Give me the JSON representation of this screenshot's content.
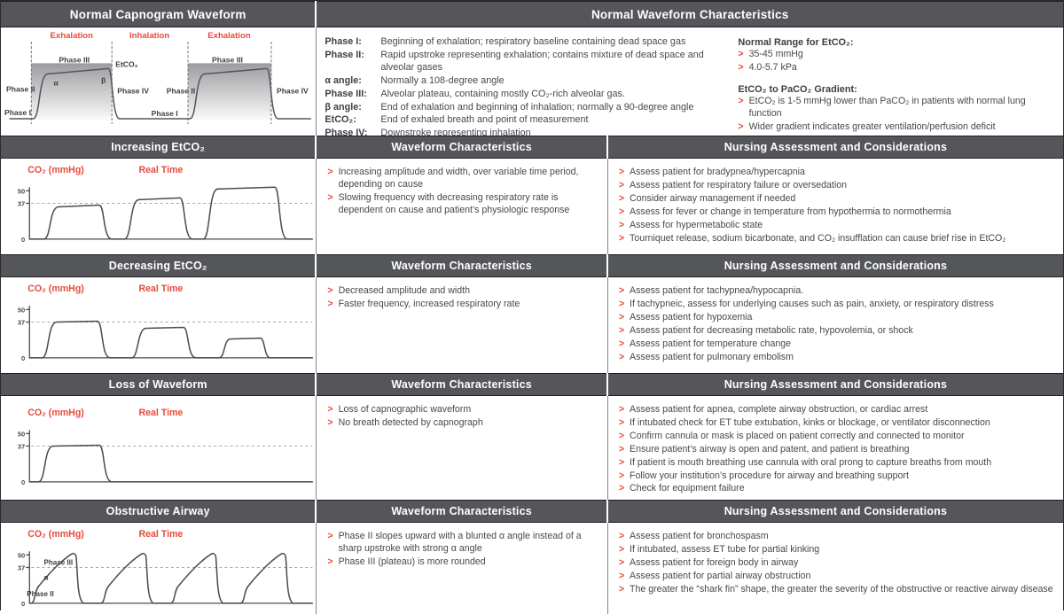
{
  "normal": {
    "waveform_title": "Normal Capnogram Waveform",
    "characteristics_title": "Normal Waveform Characteristics",
    "diagram": {
      "exhalation_left": "Exhalation",
      "inhalation": "Inhalation",
      "exhalation_right": "Exhalation",
      "phase1_left": "Phase I",
      "phase2_left": "Phase II",
      "phase3_left": "Phase III",
      "phase4_left": "Phase IV",
      "alpha": "α",
      "beta": "β",
      "etco2": "EtCO₂",
      "phase1_right": "Phase I",
      "phase2_right": "Phase II",
      "phase3_right": "Phase III",
      "phase4_right": "Phase IV"
    },
    "phases": [
      {
        "term": "Phase I:",
        "definition": "Beginning of exhalation; respiratory baseline containing dead space gas"
      },
      {
        "term": "Phase II:",
        "definition": "Rapid upstroke representing exhalation; contains mixture of dead space and alveolar gases"
      },
      {
        "term": "α angle:",
        "definition": "Normally a 108-degree angle"
      },
      {
        "term": "Phase III:",
        "definition": "Alveolar plateau, containing mostly CO₂-rich alveolar gas."
      },
      {
        "term": "β angle:",
        "definition": "End of exhalation and beginning of inhalation; normally a 90-degree angle"
      },
      {
        "term": "EtCO₂:",
        "definition": "End of exhaled breath and point of measurement"
      },
      {
        "term": "Phase IV:",
        "definition": "Downstroke representing inhalation"
      }
    ],
    "range_groups": [
      {
        "heading": "Normal Range for EtCO₂:",
        "items": [
          "35-45 mmHg",
          "4.0-5.7 kPa"
        ]
      },
      {
        "heading": "EtCO₂ to PaCO₂ Gradient:",
        "items": [
          "EtCO₂ is 1-5 mmHg lower than PaCO₂ in patients with normal lung function",
          "Wider gradient indicates greater ventilation/perfusion deficit"
        ]
      }
    ]
  },
  "graph": {
    "ylabel": "CO₂ (mmHg)",
    "xlabel": "Real Time",
    "tick_top": "50",
    "tick_mid": "37",
    "tick_zero": "0"
  },
  "column_headers": {
    "characteristics": "Waveform Characteristics",
    "nursing": "Nursing Assessment and Considerations"
  },
  "sections": [
    {
      "title": "Increasing EtCO₂",
      "characteristics": [
        "Increasing amplitude and width, over variable time period, depending on cause",
        "Slowing frequency with decreasing respiratory rate is dependent on cause and patient’s physiologic response"
      ],
      "nursing": [
        "Assess patient for bradypnea/hypercapnia",
        "Assess patient for respiratory failure or oversedation",
        "Consider airway management if needed",
        "Assess for fever or change in temperature from hypothermia to normothermia",
        "Assess for hypermetabolic state",
        "Tourniquet release, sodium bicarbonate, and CO₂ insufflation can cause brief rise in EtCO₂"
      ]
    },
    {
      "title": "Decreasing EtCO₂",
      "characteristics": [
        "Decreased amplitude and width",
        "Faster frequency, increased respiratory rate"
      ],
      "nursing": [
        "Assess patient for tachypnea/hypocapnia.",
        "If tachypneic, assess for underlying causes such as pain, anxiety, or respiratory distress",
        "Assess patient for hypoxemia",
        "Assess patient for decreasing metabolic rate, hypovolemia, or shock",
        "Assess patient for temperature change",
        "Assess patient for pulmonary embolism"
      ]
    },
    {
      "title": "Loss of Waveform",
      "characteristics": [
        "Loss of capnographic waveform",
        "No breath detected by capnograph"
      ],
      "nursing": [
        "Assess patient for apnea, complete airway obstruction, or cardiac arrest",
        "If intubated check for ET tube extubation, kinks or blockage, or ventilator disconnection",
        "Confirm cannula or mask is placed on patient correctly and connected to monitor",
        "Ensure patient’s airway is open and patent, and patient is breathing",
        "If patient is mouth breathing use cannula with oral prong to capture breaths from mouth",
        "Follow your institution’s procedure for airway and breathing support",
        "Check for equipment failure"
      ]
    },
    {
      "title": "Obstructive Airway",
      "annotations": {
        "phase3": "Phase III",
        "phase2": "Phase II",
        "alpha": "α"
      },
      "characteristics": [
        "Phase II slopes upward with a blunted α angle instead of a sharp upstroke with strong α angle",
        "Phase III (plateau) is more rounded"
      ],
      "nursing": [
        "Assess patient for bronchospasm",
        "If intubated, assess ET tube for partial kinking",
        "Assess patient for foreign body in airway",
        "Assess patient for partial airway obstruction",
        "The greater the “shark fin” shape, the greater the severity of the obstructive or reactive airway disease"
      ]
    }
  ]
}
